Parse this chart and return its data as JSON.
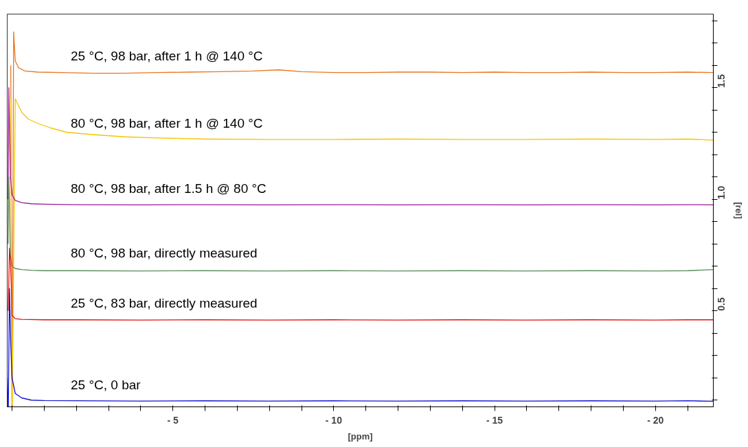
{
  "chart_data": {
    "type": "line",
    "xlabel": "[ppm]",
    "ylabel": "[rel]",
    "grid": false,
    "marker": "none",
    "line_style": "solid",
    "xlim": [
      0.15,
      -21.8
    ],
    "ylim": [
      0.07,
      1.83
    ],
    "xticks": [
      {
        "value": 0,
        "label": null
      },
      {
        "value": -1,
        "label": null
      },
      {
        "value": -2,
        "label": null
      },
      {
        "value": -3,
        "label": null
      },
      {
        "value": -4,
        "label": null
      },
      {
        "value": -5,
        "label": "- 5"
      },
      {
        "value": -6,
        "label": null
      },
      {
        "value": -7,
        "label": null
      },
      {
        "value": -8,
        "label": null
      },
      {
        "value": -9,
        "label": null
      },
      {
        "value": -10,
        "label": "- 10"
      },
      {
        "value": -11,
        "label": null
      },
      {
        "value": -12,
        "label": null
      },
      {
        "value": -13,
        "label": null
      },
      {
        "value": -14,
        "label": null
      },
      {
        "value": -15,
        "label": "- 15"
      },
      {
        "value": -16,
        "label": null
      },
      {
        "value": -17,
        "label": null
      },
      {
        "value": -18,
        "label": null
      },
      {
        "value": -19,
        "label": null
      },
      {
        "value": -20,
        "label": "- 20"
      },
      {
        "value": -21,
        "label": null
      }
    ],
    "yticks": [
      {
        "value": 0.1,
        "label": null
      },
      {
        "value": 0.2,
        "label": null
      },
      {
        "value": 0.3,
        "label": null
      },
      {
        "value": 0.4,
        "label": null
      },
      {
        "value": 0.5,
        "label": "0.5"
      },
      {
        "value": 0.6,
        "label": null
      },
      {
        "value": 0.7,
        "label": null
      },
      {
        "value": 0.8,
        "label": null
      },
      {
        "value": 0.9,
        "label": null
      },
      {
        "value": 1.0,
        "label": "1.0"
      },
      {
        "value": 1.1,
        "label": null
      },
      {
        "value": 1.2,
        "label": null
      },
      {
        "value": 1.3,
        "label": null
      },
      {
        "value": 1.4,
        "label": null
      },
      {
        "value": 1.5,
        "label": "1.5"
      },
      {
        "value": 1.6,
        "label": null
      },
      {
        "value": 1.7,
        "label": null
      },
      {
        "value": 1.8,
        "label": null
      }
    ],
    "series": [
      {
        "name": "25 °C, 98 bar, after 1 h @ 140 °C",
        "color": "#e87722",
        "x": [
          0.04,
          0,
          -0.05,
          -0.1,
          -0.2,
          -0.4,
          -0.8,
          -1.5,
          -2.5,
          -3.5,
          -4.5,
          -5.5,
          -6.5,
          -7.5,
          -8.3,
          -9,
          -10,
          -11,
          -12,
          -13,
          -14,
          -15,
          -16,
          -17,
          -18,
          -19,
          -20,
          -21,
          -21.8
        ],
        "values": [
          1.6,
          null,
          1.75,
          1.62,
          1.59,
          1.575,
          1.57,
          1.568,
          1.565,
          1.565,
          1.568,
          1.57,
          1.572,
          1.575,
          1.58,
          1.572,
          1.568,
          1.568,
          1.57,
          1.57,
          1.568,
          1.57,
          1.568,
          1.568,
          1.57,
          1.568,
          1.568,
          1.57,
          1.568
        ]
      },
      {
        "name": "80 °C, 98 bar, after 1 h @ 140 °C",
        "color": "#f5c400",
        "x": [
          0.04,
          0,
          -0.1,
          -0.3,
          -0.5,
          -0.8,
          -1.2,
          -1.7,
          -2.5,
          -3.5,
          -4.5,
          -6,
          -8,
          -10,
          -12,
          -14,
          -16,
          -18,
          -20,
          -21,
          -21.8
        ],
        "values": [
          1.45,
          null,
          1.45,
          1.39,
          1.36,
          1.34,
          1.32,
          1.3,
          1.29,
          1.28,
          1.275,
          1.27,
          1.268,
          1.268,
          1.27,
          1.268,
          1.268,
          1.27,
          1.268,
          1.27,
          1.265
        ]
      },
      {
        "name": "80 °C, 98 bar, after 1.5 h @ 80 °C",
        "color": "#9a1a9a",
        "x": [
          0.12,
          0.1,
          0.05,
          0,
          -0.1,
          -0.3,
          -0.6,
          -1,
          -2,
          -4,
          -6,
          -8,
          -10,
          -12,
          -14,
          -16,
          -18,
          -20,
          -21,
          -21.8
        ],
        "values": [
          1.0,
          1.5,
          1.1,
          1.02,
          0.995,
          0.985,
          0.98,
          0.978,
          0.976,
          0.975,
          0.976,
          0.975,
          0.976,
          0.975,
          0.976,
          0.975,
          0.976,
          0.975,
          0.976,
          0.975
        ]
      },
      {
        "name": "80 °C, 98 bar, directly measured",
        "color": "#5a8a5a",
        "x": [
          0.12,
          0.1,
          0.05,
          0,
          -0.1,
          -0.3,
          -0.6,
          -1,
          -2,
          -4,
          -6,
          -8,
          -10,
          -12,
          -14,
          -16,
          -18,
          -20,
          -21,
          -21.8
        ],
        "values": [
          0.8,
          1.1,
          0.75,
          0.7,
          0.69,
          0.685,
          0.682,
          0.68,
          0.68,
          0.679,
          0.68,
          0.679,
          0.68,
          0.679,
          0.68,
          0.679,
          0.68,
          0.679,
          0.68,
          0.685
        ]
      },
      {
        "name": "25 °C, 83 bar, directly measured",
        "color": "#e01010",
        "x": [
          0.12,
          0.08,
          0.05,
          0.02,
          0,
          -0.1,
          -0.3,
          -1,
          -2,
          -4,
          -6,
          -8,
          -10,
          -12,
          -14,
          -16,
          -18,
          -20,
          -21,
          -21.8
        ],
        "values": [
          0.5,
          0.78,
          0.72,
          0.6,
          0.48,
          0.465,
          0.462,
          0.46,
          0.46,
          0.459,
          0.46,
          0.459,
          0.46,
          0.459,
          0.46,
          0.459,
          0.46,
          0.459,
          0.46,
          0.46
        ]
      },
      {
        "name": "25 °C, 0 bar",
        "color": "#1010d0",
        "x": [
          0.15,
          0.12,
          0.08,
          0.04,
          0,
          -0.1,
          -0.3,
          -0.6,
          -1,
          -2,
          -4,
          -6,
          -8,
          -10,
          -12,
          -14,
          -16,
          -18,
          -20,
          -21,
          -21.8
        ],
        "values": [
          0.2,
          null,
          0.6,
          0.35,
          0.2,
          0.13,
          0.11,
          0.1,
          0.098,
          0.097,
          0.096,
          0.097,
          0.096,
          0.097,
          0.096,
          0.097,
          0.096,
          0.097,
          0.096,
          0.097,
          0.095
        ]
      }
    ]
  }
}
